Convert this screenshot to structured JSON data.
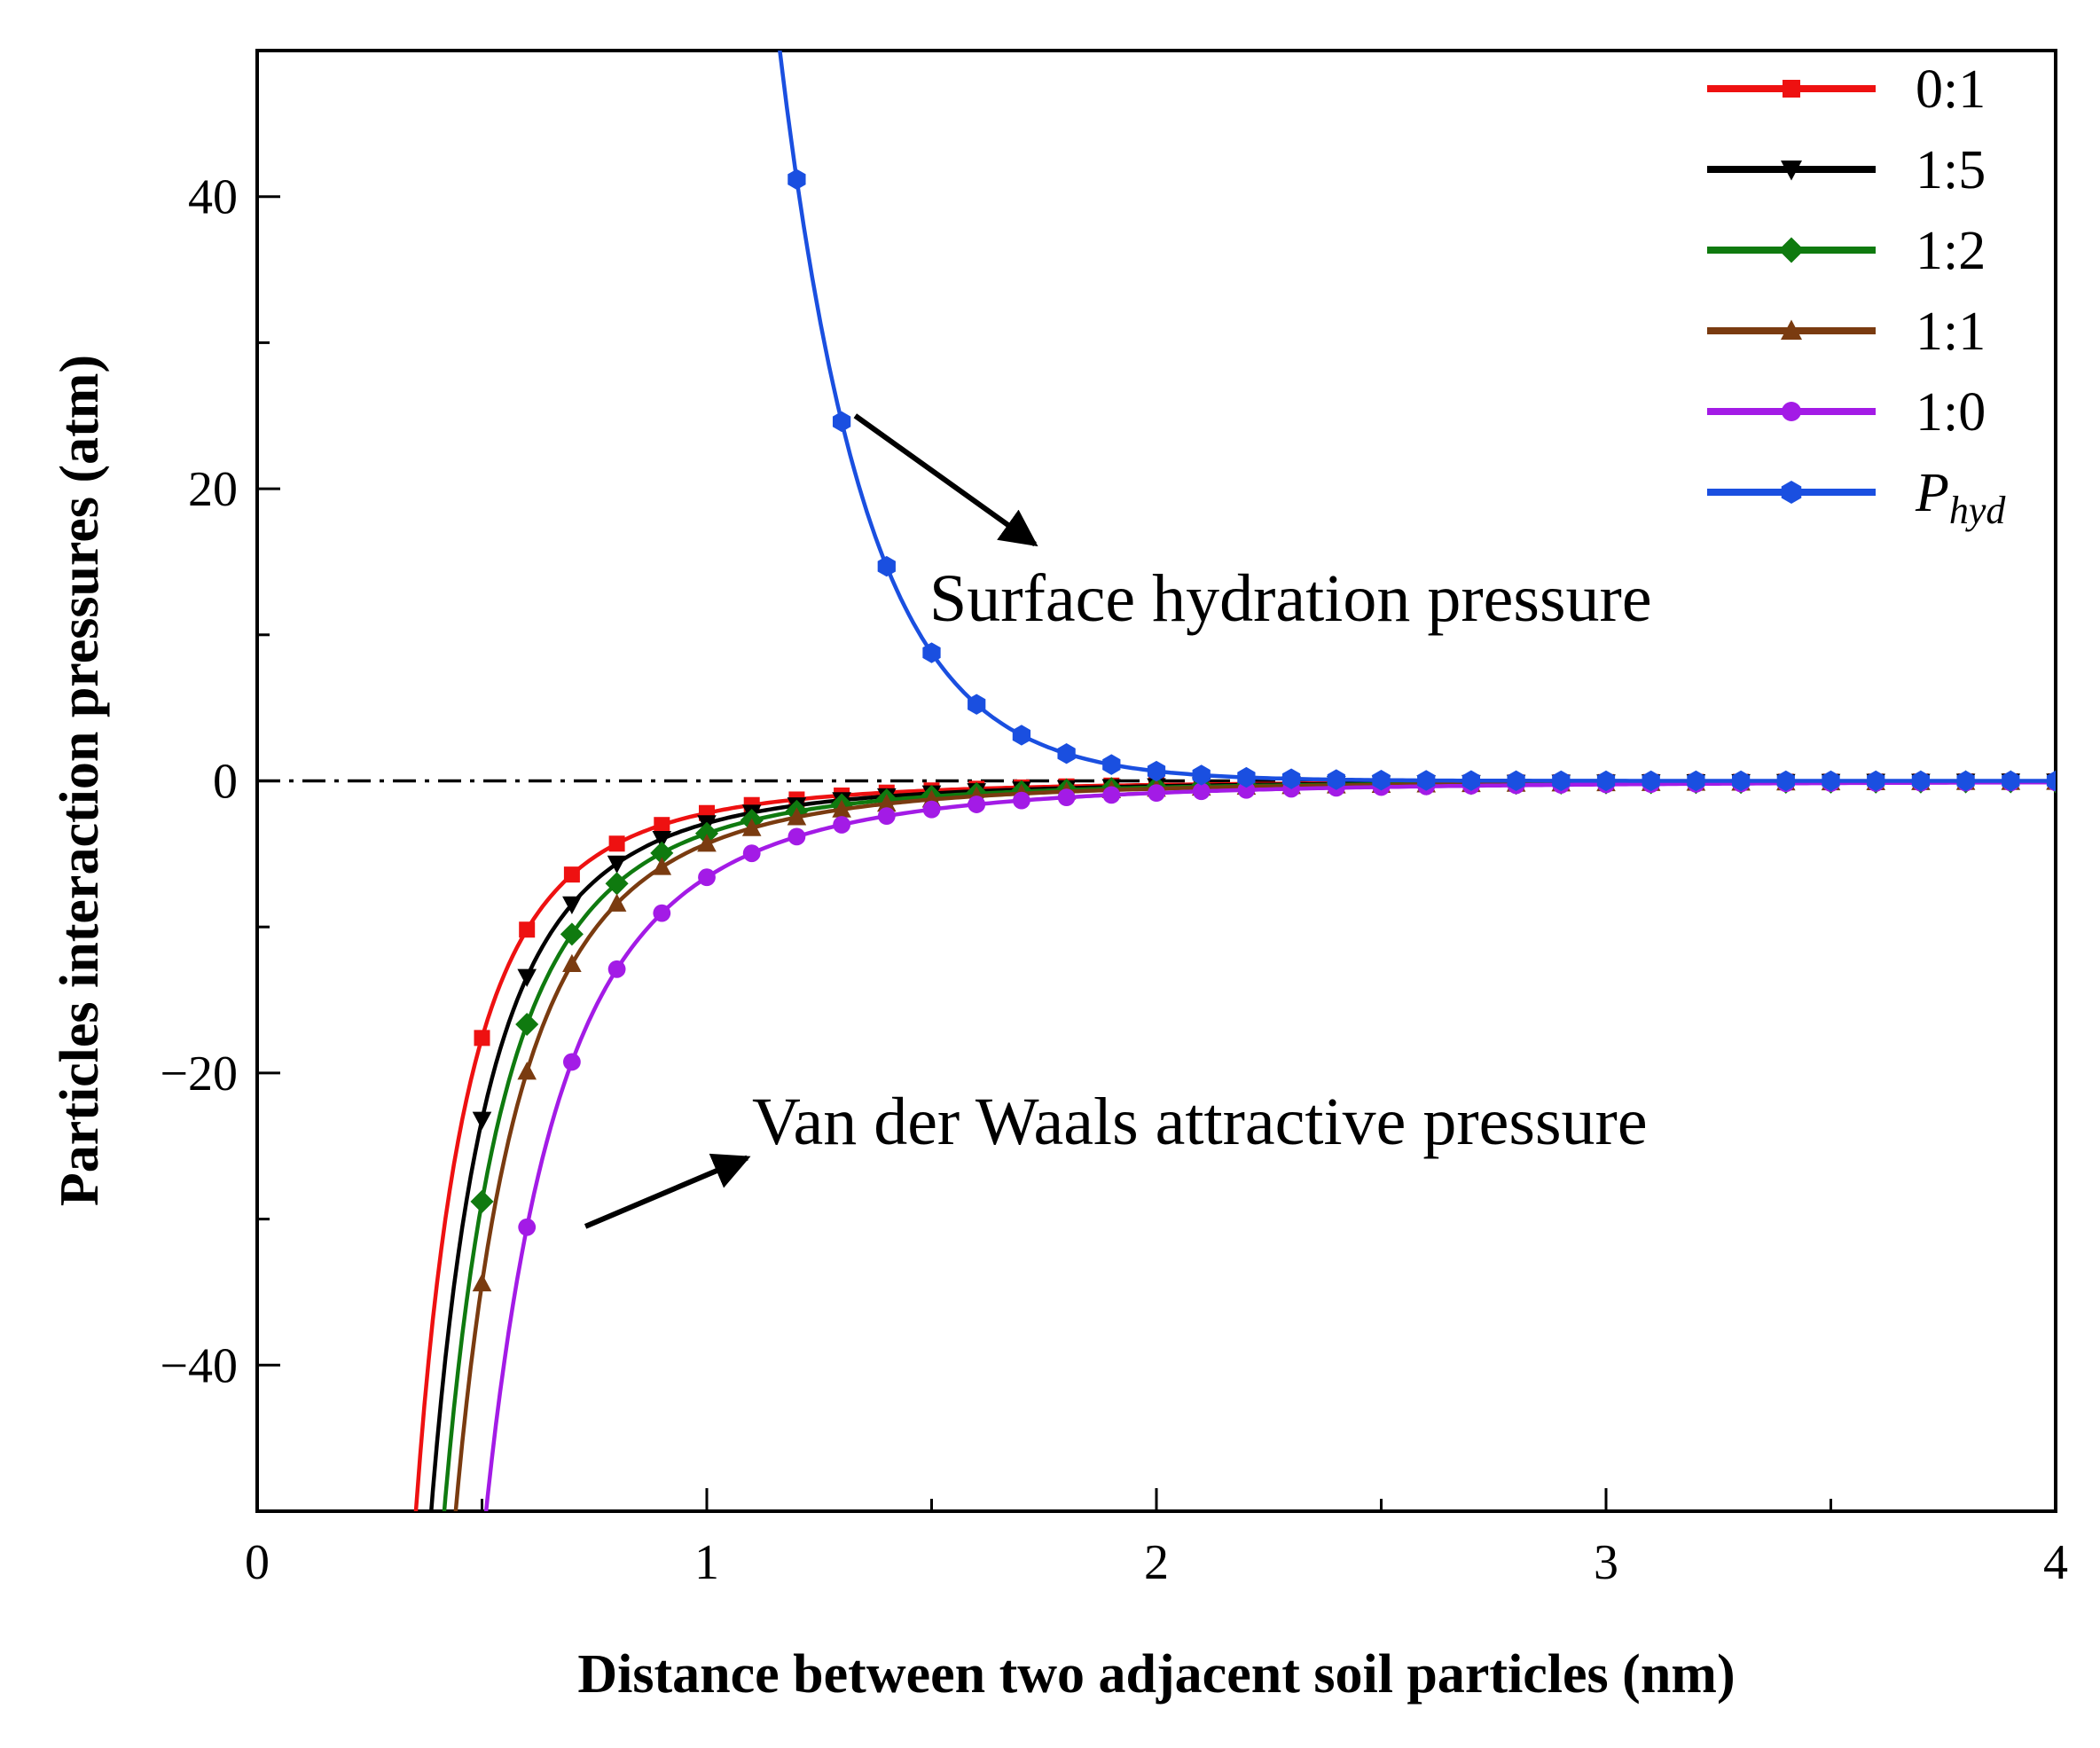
{
  "chart_data": {
    "type": "line",
    "title": "",
    "xlabel": "Distance between two adjacent soil particles (nm)",
    "ylabel": "Particles interaction pressures (atm)",
    "xlim": [
      0,
      4
    ],
    "ylim": [
      -50,
      50
    ],
    "x_ticks": [
      0,
      1,
      2,
      3,
      4
    ],
    "x_tick_labels": [
      "0",
      "1",
      "2",
      "3",
      "4"
    ],
    "y_ticks": [
      -40,
      -20,
      0,
      20,
      40
    ],
    "y_tick_labels": [
      "−40",
      "−20",
      "0",
      "20",
      "40"
    ],
    "reference_line": {
      "y": 0,
      "style": "dash-dot"
    },
    "legend": {
      "placement": "top-right"
    },
    "series": [
      {
        "name": "0:1",
        "color": "#ee1111",
        "marker": "square",
        "k": 2.2
      },
      {
        "name": "1:5",
        "color": "#000000",
        "marker": "triangle-down",
        "k": 2.9
      },
      {
        "name": "1:2",
        "color": "#0f7a0f",
        "marker": "diamond",
        "k": 3.6
      },
      {
        "name": "1:1",
        "color": "#7a3b10",
        "marker": "triangle-up",
        "k": 4.3
      },
      {
        "name": "1:0",
        "color": "#a31be6",
        "marker": "circle",
        "k": 6.6
      },
      {
        "name": "P",
        "name_subscript": "hyd",
        "color": "#1a4fe0",
        "marker": "hexagon",
        "A": 20000,
        "lambda": 0.194
      }
    ],
    "attractive_model": "P = -k / d^3",
    "hydration_model": "P = A * exp(-d / lambda)",
    "x_points": [
      0.5,
      0.6,
      0.7,
      0.8,
      0.9,
      1.0,
      1.1,
      1.2,
      1.3,
      1.4,
      1.5,
      1.6,
      1.7,
      1.8,
      1.9,
      2.0,
      2.1,
      2.2,
      2.3,
      2.4,
      2.5,
      2.6,
      2.7,
      2.8,
      2.9,
      3.0,
      3.1,
      3.2,
      3.3,
      3.4,
      3.5,
      3.6,
      3.7,
      3.8,
      3.9,
      4.0
    ],
    "annotations": [
      {
        "text": "Surface hydration pressure",
        "arrow_from": [
          1.33,
          25.0
        ],
        "arrow_to": [
          1.73,
          16.2
        ]
      },
      {
        "text": "Van der Waals attractive pressure",
        "arrow_from": [
          0.73,
          -30.5
        ],
        "arrow_to": [
          1.09,
          -25.8
        ]
      }
    ]
  }
}
